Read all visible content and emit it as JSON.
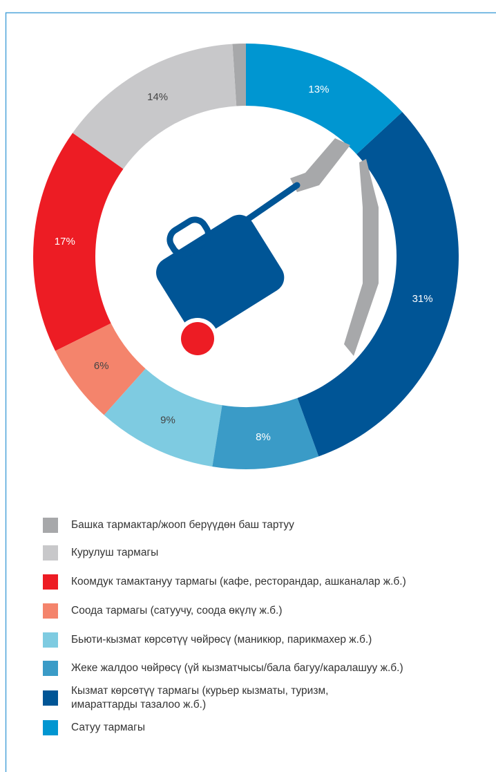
{
  "chart_data": {
    "type": "donut",
    "series": [
      {
        "name": "Башка тармактар/жооп берүүдөн баш тартуу",
        "color": "#a7a8aa"
      },
      {
        "name": "Курулуш тармагы",
        "color": "#c8c8ca"
      },
      {
        "name": "Коомдук тамактануу тармагы (кафе, ресторандар, ашканалар ж.б.)",
        "color": "#ed1c24"
      },
      {
        "name": "Соода тармагы (сатуучу, соода өкүлү ж.б.)",
        "color": "#f4846c"
      },
      {
        "name": "Бьюти-кызмат көрсөтүү чөйрөсү (маникюр, парикмахер ж.б.)",
        "color": "#7ecbe1"
      },
      {
        "name": "Жеке жалдоо чөйрөсү (үй кызматчысы/бала багуу/каралашуу ж.б.)",
        "color": "#3a9bc7"
      },
      {
        "name": "Кызмат көрсөтүү тармагы (курьер кызматы, туризм,\nимараттарды тазалоо ж.б.)",
        "color": "#005596"
      },
      {
        "name": "Сатуу тармагы",
        "color": "#0096d1"
      }
    ],
    "values": [
      1,
      14,
      17,
      6,
      9,
      8,
      31,
      13
    ],
    "value_labels": [
      null,
      "14%",
      "17%",
      "6%",
      "9%",
      "8%",
      "31%",
      "13%"
    ]
  }
}
